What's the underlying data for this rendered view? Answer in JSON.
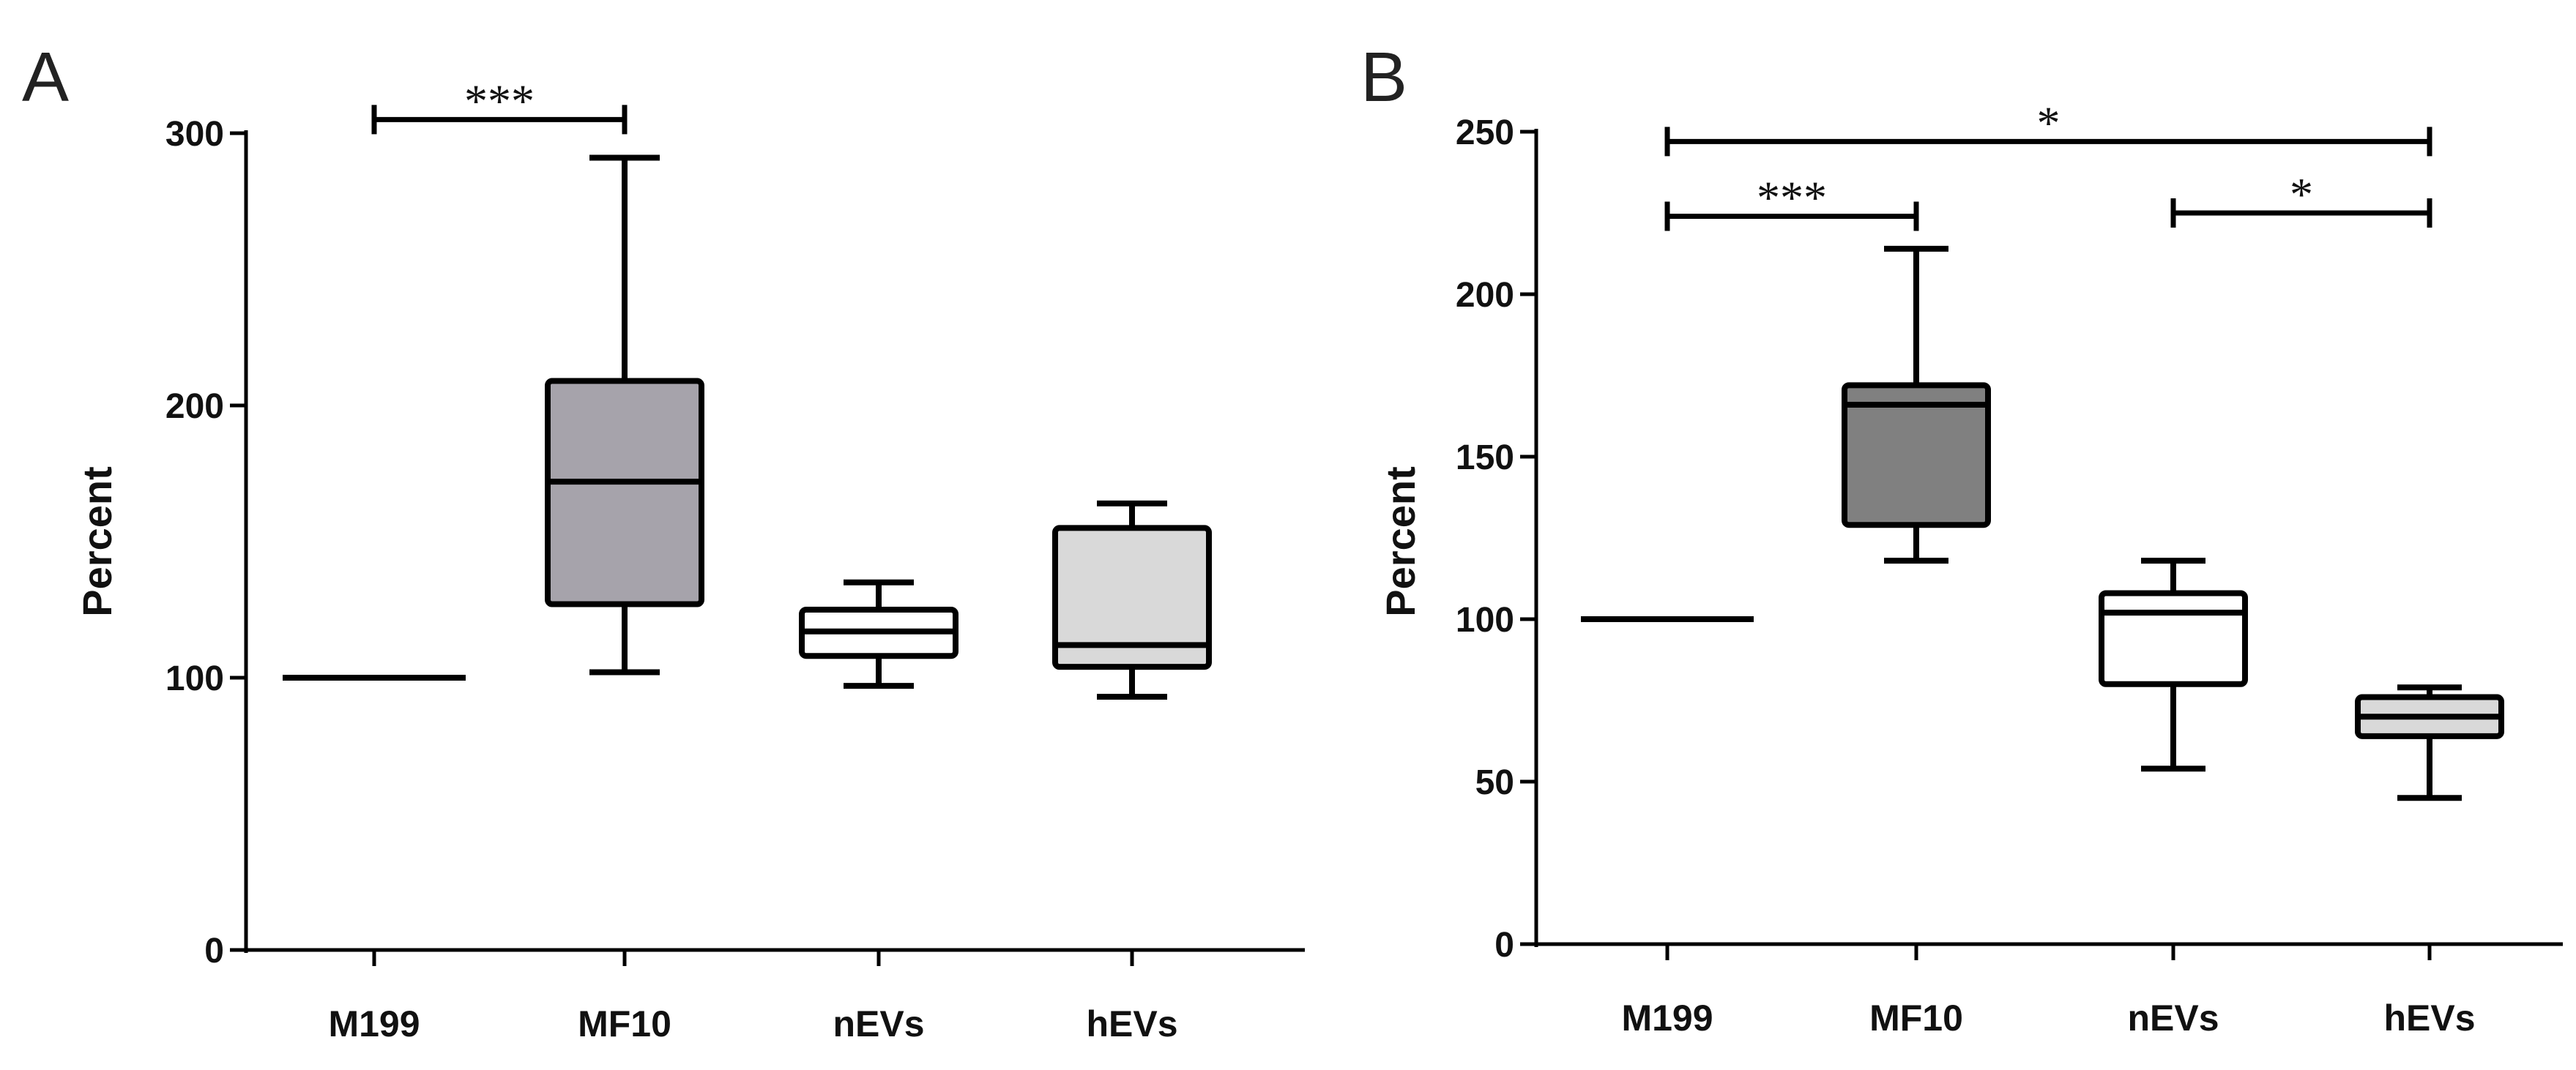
{
  "chart_data": [
    {
      "panel": "A",
      "type": "boxplot",
      "ylabel": "Percent",
      "ylim": [
        0,
        300
      ],
      "yticks": [
        0,
        100,
        200,
        300
      ],
      "categories": [
        "M199",
        "MF10",
        "nEVs",
        "hEVs"
      ],
      "boxes": [
        {
          "category": "M199",
          "min": 100,
          "q1": 100,
          "median": 100,
          "q3": 100,
          "max": 100,
          "fill": "#ffffff",
          "line_only": true
        },
        {
          "category": "MF10",
          "min": 102,
          "q1": 127,
          "median": 172,
          "q3": 209,
          "max": 291,
          "fill": "#a6a3ab",
          "line_only": false
        },
        {
          "category": "nEVs",
          "min": 97,
          "q1": 108,
          "median": 117,
          "q3": 125,
          "max": 135,
          "fill": "#ffffff",
          "line_only": false
        },
        {
          "category": "hEVs",
          "min": 93,
          "q1": 104,
          "median": 112,
          "q3": 155,
          "max": 164,
          "fill": "#d9d9d9",
          "line_only": false
        }
      ],
      "significance": [
        {
          "from": "M199",
          "to": "MF10",
          "y": 305,
          "label": "***"
        }
      ]
    },
    {
      "panel": "B",
      "type": "boxplot",
      "ylabel": "Percent",
      "ylim": [
        0,
        250
      ],
      "yticks": [
        0,
        50,
        100,
        150,
        200,
        250
      ],
      "categories": [
        "M199",
        "MF10",
        "nEVs",
        "hEVs"
      ],
      "boxes": [
        {
          "category": "M199",
          "min": 100,
          "q1": 100,
          "median": 100,
          "q3": 100,
          "max": 100,
          "fill": "#ffffff",
          "line_only": true
        },
        {
          "category": "MF10",
          "min": 118,
          "q1": 129,
          "median": 166,
          "q3": 172,
          "max": 214,
          "fill": "#808080",
          "line_only": false
        },
        {
          "category": "nEVs",
          "min": 54,
          "q1": 80,
          "median": 102,
          "q3": 108,
          "max": 118,
          "fill": "#ffffff",
          "line_only": false
        },
        {
          "category": "hEVs",
          "min": 45,
          "q1": 64,
          "median": 70,
          "q3": 76,
          "max": 79,
          "fill": "#d9d9d9",
          "line_only": false
        }
      ],
      "significance": [
        {
          "from": "M199",
          "to": "hEVs",
          "y": 247,
          "label": "*"
        },
        {
          "from": "M199",
          "to": "MF10",
          "y": 224,
          "label": "***"
        },
        {
          "from": "nEVs",
          "to": "hEVs",
          "y": 225,
          "label": "*"
        }
      ]
    }
  ]
}
